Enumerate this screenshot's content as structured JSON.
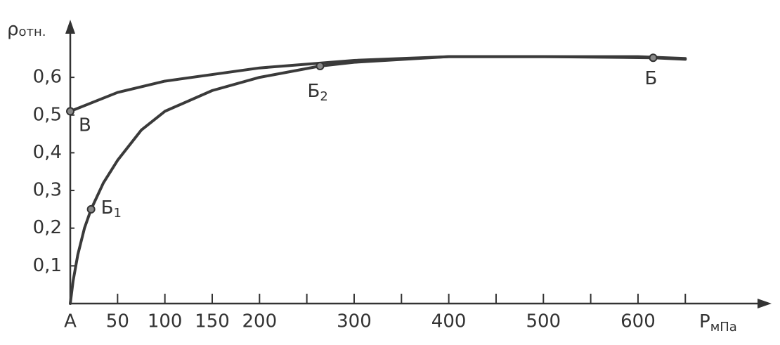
{
  "chart_data": {
    "type": "line",
    "ylabel": "ρ",
    "ylabel_sub": "отн.",
    "xlabel": "P",
    "xlabel_sub": "мПа",
    "xlim": [
      0,
      730
    ],
    "ylim": [
      0,
      0.74
    ],
    "xticks": [
      {
        "value": 0,
        "label": "А"
      },
      50,
      100,
      150,
      200,
      300,
      400,
      500,
      600
    ],
    "xminorticks": [
      250,
      350,
      450,
      550,
      650
    ],
    "yticks": [
      {
        "value": 0.1,
        "label": "0,1"
      },
      {
        "value": 0.2,
        "label": "0,2"
      },
      {
        "value": 0.3,
        "label": "0,3"
      },
      {
        "value": 0.4,
        "label": "0,4"
      },
      {
        "value": 0.5,
        "label": "0,5"
      },
      {
        "value": 0.6,
        "label": "0,6"
      }
    ],
    "series": [
      {
        "color": "#3a3a3a",
        "x": [
          0,
          3,
          8,
          15,
          22,
          35,
          50,
          75,
          100,
          150,
          200,
          264,
          300,
          400,
          500,
          616,
          650
        ],
        "values": [
          0,
          0.06,
          0.13,
          0.2,
          0.25,
          0.32,
          0.38,
          0.46,
          0.51,
          0.565,
          0.6,
          0.63,
          0.64,
          0.655,
          0.655,
          0.652,
          0.648
        ]
      },
      {
        "color": "#3a3a3a",
        "x": [
          0,
          50,
          100,
          200,
          300,
          400,
          500,
          600,
          650
        ],
        "values": [
          0.51,
          0.56,
          0.59,
          0.625,
          0.645,
          0.655,
          0.655,
          0.655,
          0.65
        ]
      }
    ],
    "points": [
      {
        "text": "Б",
        "sub": "1",
        "x": 22,
        "y": 0.25
      },
      {
        "text": "Б",
        "sub": "2",
        "x": 264,
        "y": 0.63
      },
      {
        "text": "Б",
        "x": 616,
        "y": 0.652
      },
      {
        "text": "В",
        "x": 0,
        "y": 0.51
      }
    ]
  }
}
